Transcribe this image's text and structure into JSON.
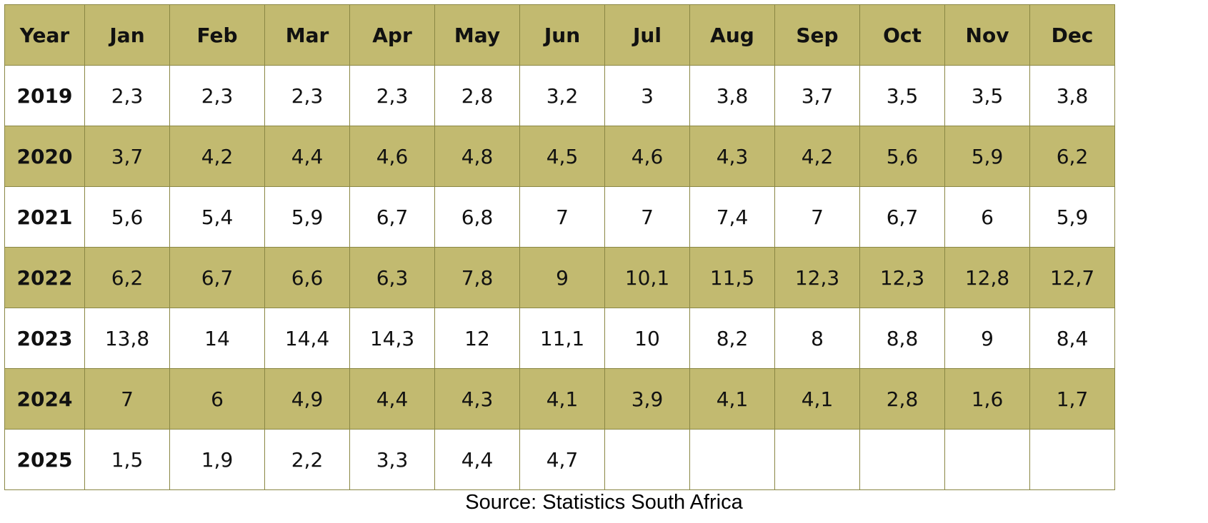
{
  "chart_data": {
    "type": "table",
    "columns": [
      "Year",
      "Jan",
      "Feb",
      "Mar",
      "Apr",
      "May",
      "Jun",
      "Jul",
      "Aug",
      "Sep",
      "Oct",
      "Nov",
      "Dec"
    ],
    "rows": [
      [
        "2019",
        "2,3",
        "2,3",
        "2,3",
        "2,3",
        "2,8",
        "3,2",
        "3",
        "3,8",
        "3,7",
        "3,5",
        "3,5",
        "3,8"
      ],
      [
        "2020",
        "3,7",
        "4,2",
        "4,4",
        "4,6",
        "4,8",
        "4,5",
        "4,6",
        "4,3",
        "4,2",
        "5,6",
        "5,9",
        "6,2"
      ],
      [
        "2021",
        "5,6",
        "5,4",
        "5,9",
        "6,7",
        "6,8",
        "7",
        "7",
        "7,4",
        "7",
        "6,7",
        "6",
        "5,9"
      ],
      [
        "2022",
        "6,2",
        "6,7",
        "6,6",
        "6,3",
        "7,8",
        "9",
        "10,1",
        "11,5",
        "12,3",
        "12,3",
        "12,8",
        "12,7"
      ],
      [
        "2023",
        "13,8",
        "14",
        "14,4",
        "14,3",
        "12",
        "11,1",
        "10",
        "8,2",
        "8",
        "8,8",
        "9",
        "8,4"
      ],
      [
        "2024",
        "7",
        "6",
        "4,9",
        "4,4",
        "4,3",
        "4,1",
        "3,9",
        "4,1",
        "4,1",
        "2,8",
        "1,6",
        "1,7"
      ],
      [
        "2025",
        "1,5",
        "1,9",
        "2,2",
        "3,3",
        "4,4",
        "4,7",
        "",
        "",
        "",
        "",
        "",
        ""
      ]
    ]
  },
  "colors": {
    "header_fill": "#c2ba70",
    "shaded_row_fill": "#c2ba70",
    "plain_row_fill": "#ffffff",
    "border": "#8a8744",
    "text": "#111111"
  },
  "source": "Source: Statistics South Africa"
}
